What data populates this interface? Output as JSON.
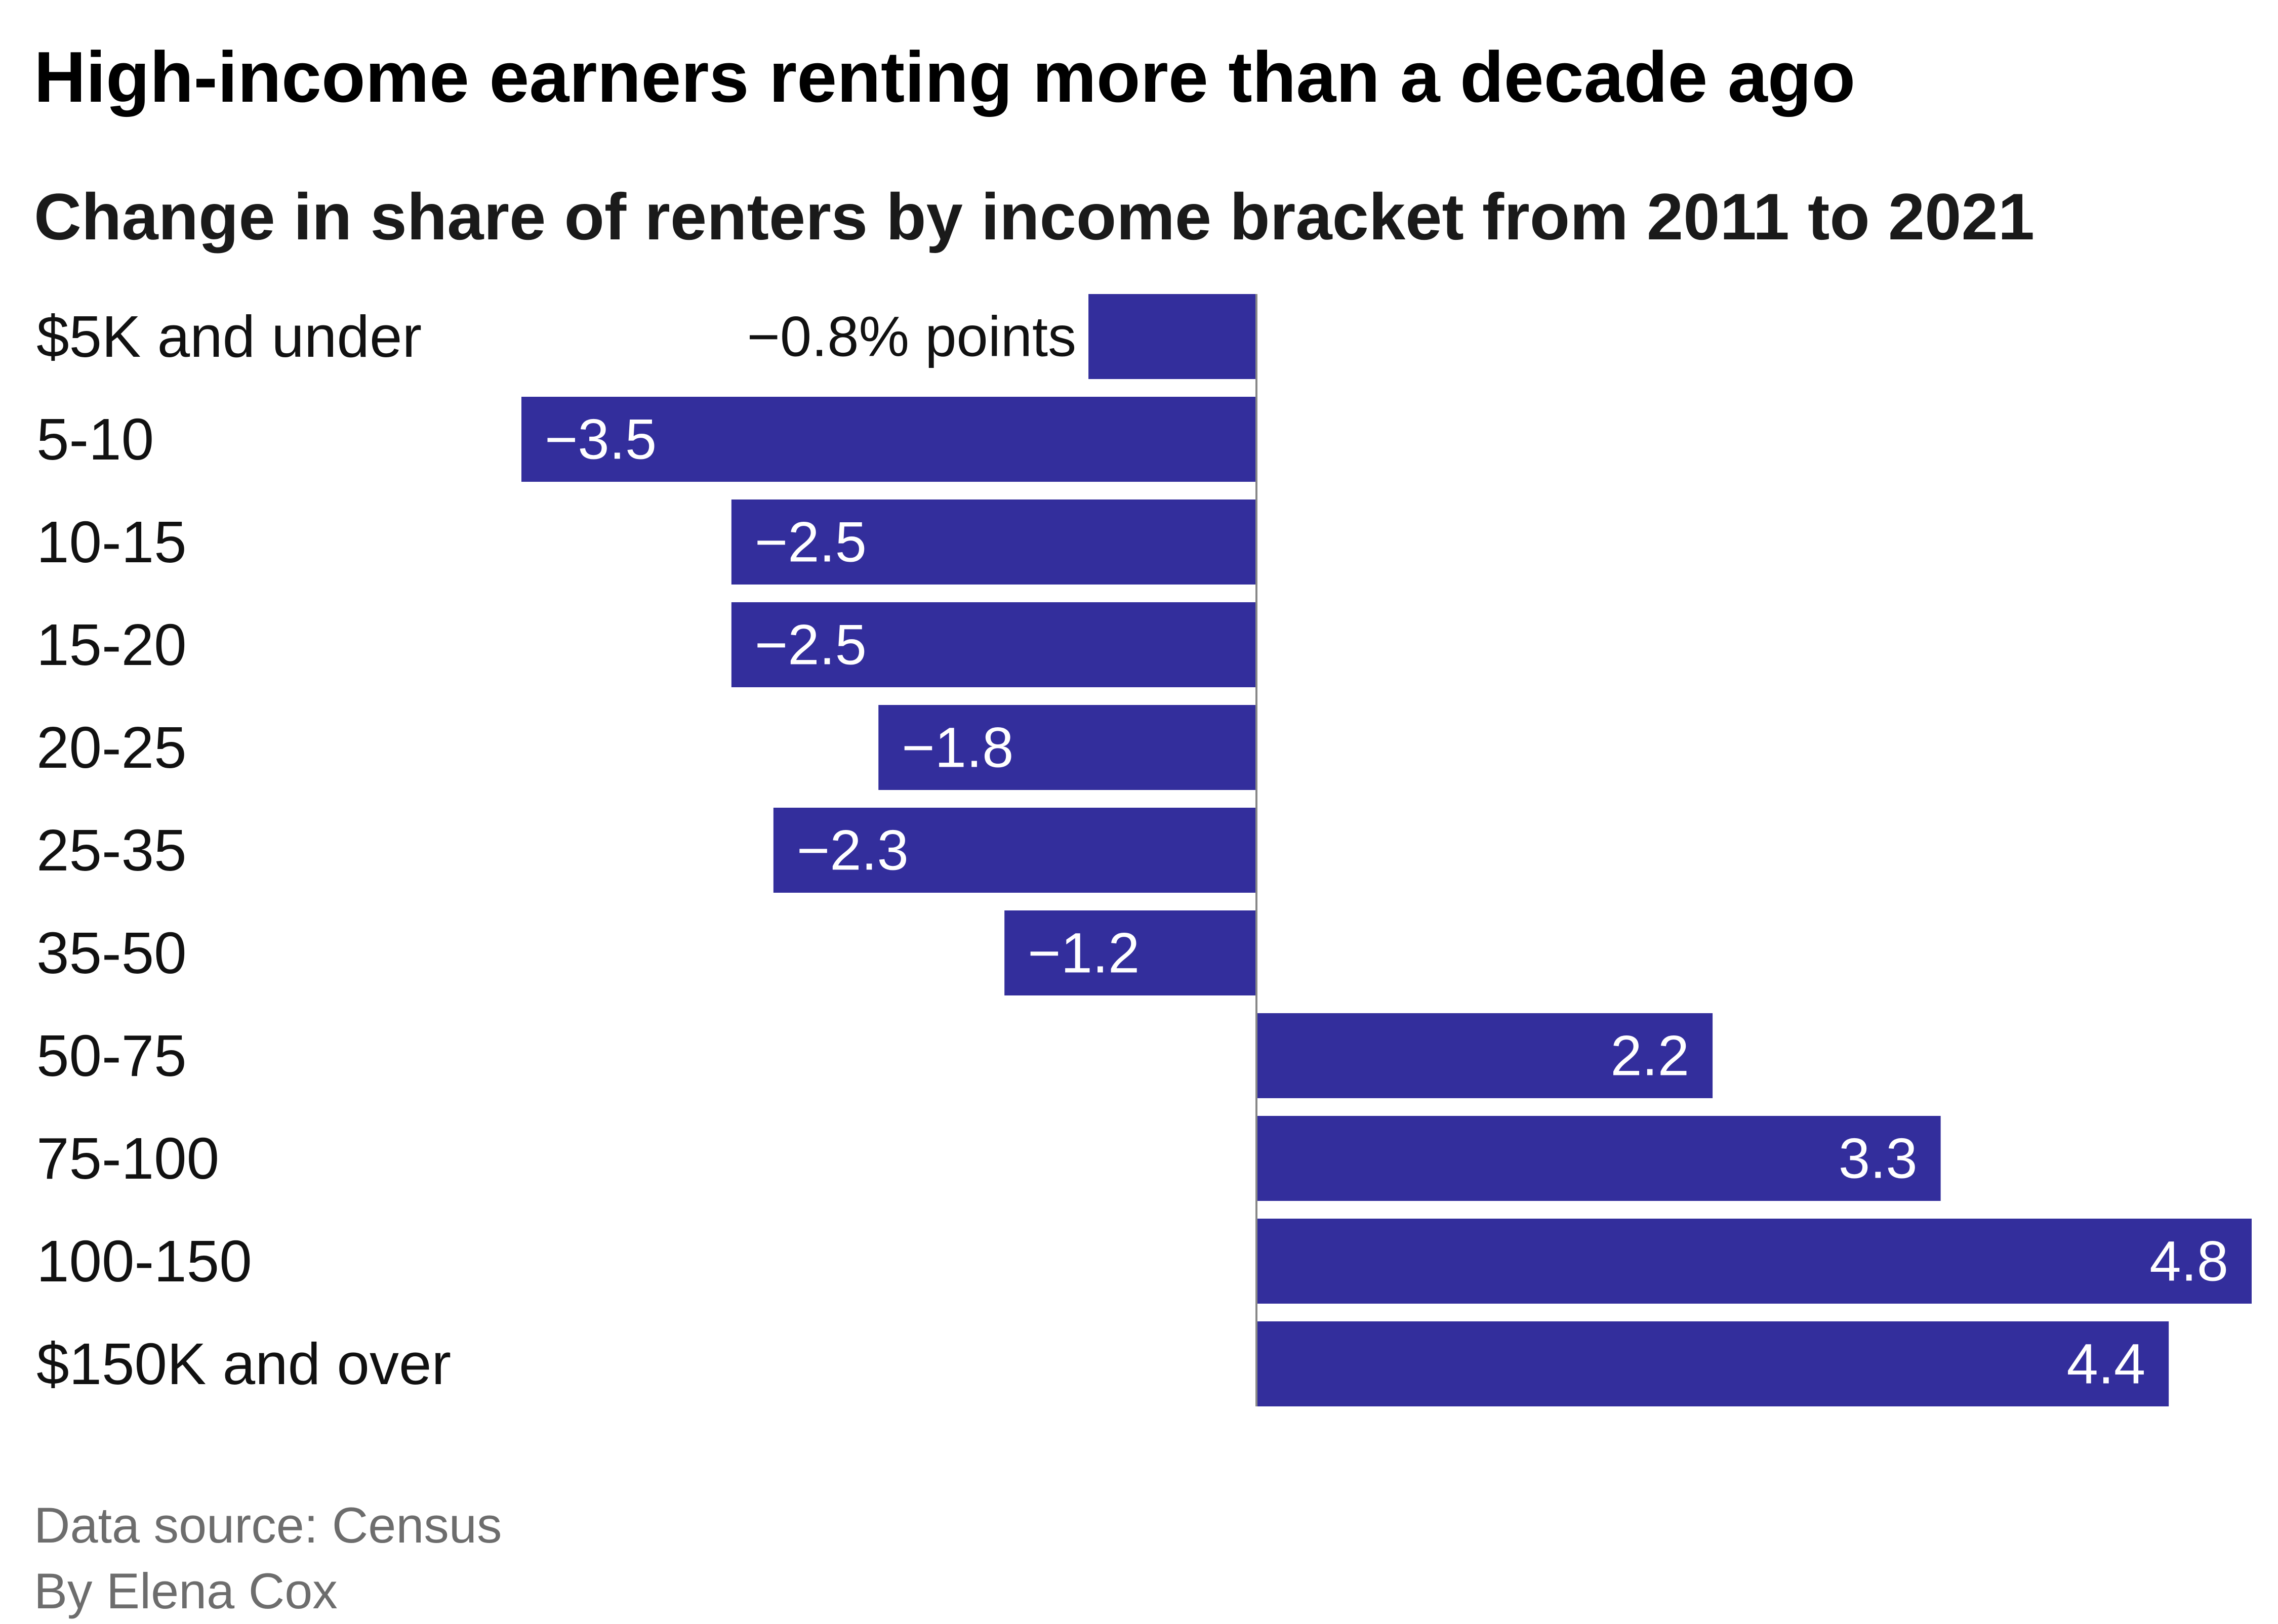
{
  "header": {
    "title": "High-income earners renting more than a decade ago",
    "subtitle": "Change in share of renters by income bracket from 2011 to 2021"
  },
  "footer": {
    "source": "Data source: Census",
    "byline": "By Elena Cox"
  },
  "colors": {
    "bar": "#332e9c",
    "label_inside": "#ffffff",
    "label_outside": "#111111",
    "axis": "#888888"
  },
  "chart_data": {
    "type": "bar",
    "orientation": "horizontal",
    "categories": [
      "$5K and under",
      "5-10",
      "10-15",
      "15-20",
      "20-25",
      "25-35",
      "35-50",
      "50-75",
      "75-100",
      "100-150",
      "$150K and over"
    ],
    "values": [
      -0.8,
      -3.5,
      -2.5,
      -2.5,
      -1.8,
      -2.3,
      -1.2,
      2.2,
      3.3,
      4.8,
      4.4
    ],
    "value_labels": [
      "−0.8% points",
      "−3.5",
      "−2.5",
      "−2.5",
      "−1.8",
      "−2.3",
      "−1.2",
      "2.2",
      "3.3",
      "4.8",
      "4.4"
    ],
    "unit": "% points",
    "xlim": [
      -3.5,
      4.8
    ],
    "title": "High-income earners renting more than a decade ago",
    "subtitle": "Change in share of renters by income bracket from 2011 to 2021",
    "grid": false,
    "legend": "none"
  }
}
